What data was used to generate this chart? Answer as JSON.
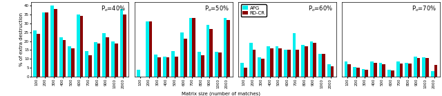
{
  "panels": [
    {
      "label": "P$_o$=40%",
      "x_labels": [
        "100",
        "200",
        "300",
        "400",
        "500",
        "600",
        "700",
        "800",
        "900",
        "1000",
        "2000"
      ],
      "apg": [
        26,
        36,
        40,
        22,
        17,
        35,
        14.5,
        19.5,
        24.5,
        20,
        38
      ],
      "rdcr": [
        24,
        36,
        38,
        20.5,
        16,
        34,
        12,
        18.5,
        22,
        18.5,
        35
      ]
    },
    {
      "label": "P$_o$=50%",
      "x_labels": [
        "100",
        "200",
        "300",
        "400",
        "500",
        "600",
        "700",
        "800",
        "900",
        "1000",
        "2000"
      ],
      "apg": [
        4,
        31,
        12.5,
        11.5,
        14.5,
        25,
        33,
        14,
        29,
        14,
        33
      ],
      "rdcr": [
        0,
        31,
        11,
        11,
        11.5,
        21.5,
        33,
        12,
        27,
        13.5,
        32
      ]
    },
    {
      "label": "P$_o$=60%",
      "x_labels": [
        "100",
        "200",
        "300",
        "400",
        "500",
        "600",
        "700",
        "800",
        "900",
        "1000",
        "2000"
      ],
      "apg": [
        8,
        19,
        11,
        17,
        17,
        15,
        24.5,
        18,
        20,
        13,
        7
      ],
      "rdcr": [
        5,
        15,
        10,
        16,
        16,
        15,
        15,
        17,
        19,
        13,
        6
      ]
    },
    {
      "label": "P$_o$=70%",
      "x_labels": [
        "100",
        "200",
        "300",
        "400",
        "500",
        "600",
        "700",
        "800",
        "900",
        "1000",
        "2000"
      ],
      "apg": [
        8.5,
        5.5,
        4.5,
        8.5,
        8,
        4,
        8.5,
        8,
        11.5,
        11,
        3
      ],
      "rdcr": [
        7,
        5,
        4,
        8,
        7,
        3.5,
        7.5,
        7.5,
        10.5,
        10.5,
        6.5
      ]
    }
  ],
  "color_apg": "#00EEEE",
  "color_rdcr": "#8B0000",
  "ylabel": "% of extra destruction",
  "xlabel": "Matrix size (number of matches)",
  "ylim": [
    0,
    42
  ],
  "bar_width": 0.38,
  "legend_labels": [
    "APG",
    "RD-CR"
  ],
  "bg_color": "#FFFFFF",
  "label_fontsize": 5.0,
  "tick_fontsize": 4.0,
  "annotation_fontsize": 6.0,
  "yticks": [
    0,
    5,
    10,
    15,
    20,
    25,
    30,
    35,
    40
  ]
}
